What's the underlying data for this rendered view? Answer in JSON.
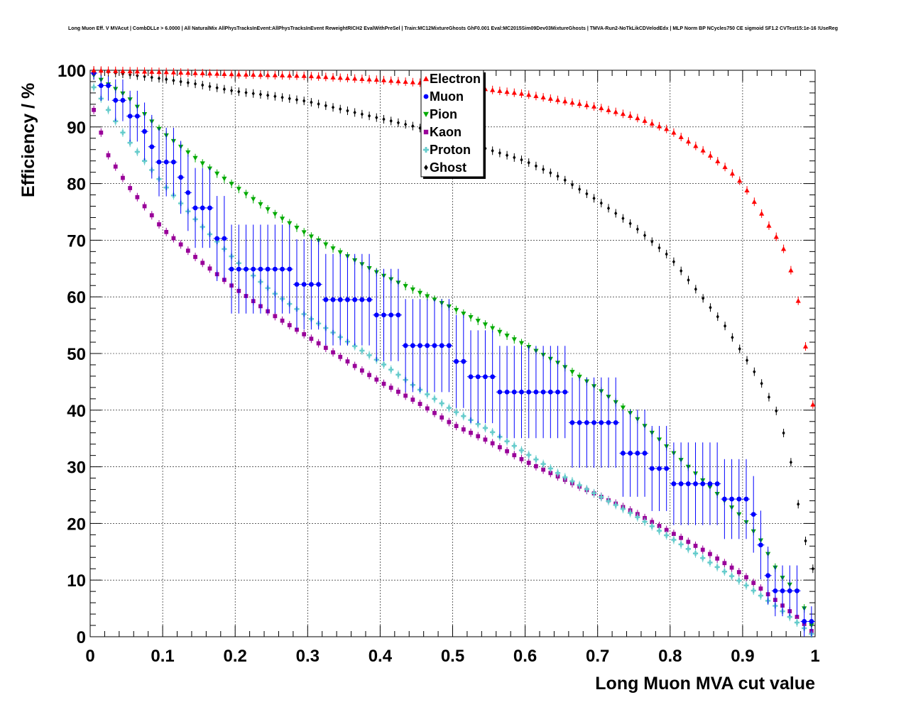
{
  "chart_data": {
    "type": "scatter",
    "title": "Long Muon Eff. V MVAcut | CombDLLe > 6.0000 | All NaturalMix AllPhysTracksInEvent:AllPhysTracksInEvent ReweightRICH2 EvalWithPreSel | Train:MC12MixtureGhosts GhF0.001 Eval:MC2015Sim09Dev03MixtureGhosts | TMVA-Run2-NoTkLikCDVelodEdx | MLP Norm BP NCycles750 CE sigmoid SF1.2 CVTest15:1e-16 !UseReg",
    "xlabel": "Long Muon MVA cut value",
    "ylabel": "Efficiency / %",
    "xlim": [
      0,
      1
    ],
    "ylim": [
      0,
      100
    ],
    "xticks": [
      "0",
      "0.1",
      "0.2",
      "0.3",
      "0.4",
      "0.5",
      "0.6",
      "0.7",
      "0.8",
      "0.9",
      "1"
    ],
    "yticks": [
      "0",
      "10",
      "20",
      "30",
      "40",
      "50",
      "60",
      "70",
      "80",
      "90",
      "100"
    ],
    "legend_position": "top-center",
    "series": [
      {
        "name": "Electron",
        "color": "#ff0000",
        "marker": "triangle-up",
        "points": [
          [
            0.0,
            100
          ],
          [
            0.1,
            99.7
          ],
          [
            0.2,
            99.3
          ],
          [
            0.3,
            99
          ],
          [
            0.4,
            98.3
          ],
          [
            0.5,
            97.4
          ],
          [
            0.6,
            95.8
          ],
          [
            0.7,
            93.5
          ],
          [
            0.75,
            91.8
          ],
          [
            0.8,
            89.4
          ],
          [
            0.85,
            85.5
          ],
          [
            0.88,
            82.5
          ],
          [
            0.9,
            80
          ],
          [
            0.92,
            76
          ],
          [
            0.94,
            71.8
          ],
          [
            0.955,
            69
          ],
          [
            0.965,
            65.5
          ],
          [
            0.975,
            60.5
          ],
          [
            0.985,
            53.5
          ],
          [
            0.995,
            41
          ]
        ]
      },
      {
        "name": "Muon",
        "color": "#0000ff",
        "marker": "circle",
        "points": [
          [
            0.005,
            99.5
          ],
          [
            0.015,
            97.3
          ],
          [
            0.025,
            97.3
          ],
          [
            0.035,
            94.7
          ],
          [
            0.045,
            94.7
          ],
          [
            0.055,
            91.9
          ],
          [
            0.065,
            91.9
          ],
          [
            0.075,
            89.2
          ],
          [
            0.085,
            86.5
          ],
          [
            0.095,
            83.8
          ],
          [
            0.105,
            83.8
          ],
          [
            0.115,
            83.8
          ],
          [
            0.125,
            81.1
          ],
          [
            0.135,
            78.4
          ],
          [
            0.145,
            75.7
          ],
          [
            0.155,
            75.7
          ],
          [
            0.165,
            75.7
          ],
          [
            0.175,
            70.3
          ],
          [
            0.185,
            70.3
          ],
          [
            0.195,
            64.9
          ],
          [
            0.205,
            64.9
          ],
          [
            0.215,
            64.9
          ],
          [
            0.225,
            64.9
          ],
          [
            0.235,
            64.9
          ],
          [
            0.245,
            64.9
          ],
          [
            0.255,
            64.9
          ],
          [
            0.265,
            64.9
          ],
          [
            0.275,
            64.9
          ],
          [
            0.285,
            62.2
          ],
          [
            0.295,
            62.2
          ],
          [
            0.305,
            62.2
          ],
          [
            0.315,
            62.2
          ],
          [
            0.325,
            59.5
          ],
          [
            0.335,
            59.5
          ],
          [
            0.345,
            59.5
          ],
          [
            0.355,
            59.5
          ],
          [
            0.365,
            59.5
          ],
          [
            0.375,
            59.5
          ],
          [
            0.385,
            59.5
          ],
          [
            0.395,
            56.8
          ],
          [
            0.405,
            56.8
          ],
          [
            0.415,
            56.8
          ],
          [
            0.425,
            56.8
          ],
          [
            0.435,
            51.4
          ],
          [
            0.445,
            51.4
          ],
          [
            0.455,
            51.4
          ],
          [
            0.465,
            51.4
          ],
          [
            0.475,
            51.4
          ],
          [
            0.485,
            51.4
          ],
          [
            0.495,
            51.4
          ],
          [
            0.505,
            48.6
          ],
          [
            0.515,
            48.6
          ],
          [
            0.525,
            45.9
          ],
          [
            0.535,
            45.9
          ],
          [
            0.545,
            45.9
          ],
          [
            0.555,
            45.9
          ],
          [
            0.565,
            43.2
          ],
          [
            0.575,
            43.2
          ],
          [
            0.585,
            43.2
          ],
          [
            0.595,
            43.2
          ],
          [
            0.605,
            43.2
          ],
          [
            0.615,
            43.2
          ],
          [
            0.625,
            43.2
          ],
          [
            0.635,
            43.2
          ],
          [
            0.645,
            43.2
          ],
          [
            0.655,
            43.2
          ],
          [
            0.665,
            37.8
          ],
          [
            0.675,
            37.8
          ],
          [
            0.685,
            37.8
          ],
          [
            0.695,
            37.8
          ],
          [
            0.705,
            37.8
          ],
          [
            0.715,
            37.8
          ],
          [
            0.725,
            37.8
          ],
          [
            0.735,
            32.4
          ],
          [
            0.745,
            32.4
          ],
          [
            0.755,
            32.4
          ],
          [
            0.765,
            32.4
          ],
          [
            0.775,
            29.7
          ],
          [
            0.785,
            29.7
          ],
          [
            0.795,
            29.7
          ],
          [
            0.805,
            27
          ],
          [
            0.815,
            27
          ],
          [
            0.825,
            27
          ],
          [
            0.835,
            27
          ],
          [
            0.845,
            27
          ],
          [
            0.855,
            27
          ],
          [
            0.865,
            27
          ],
          [
            0.875,
            24.3
          ],
          [
            0.885,
            24.3
          ],
          [
            0.895,
            24.3
          ],
          [
            0.905,
            24.3
          ],
          [
            0.915,
            21.6
          ],
          [
            0.925,
            16.2
          ],
          [
            0.935,
            10.8
          ],
          [
            0.945,
            8.1
          ],
          [
            0.955,
            8.1
          ],
          [
            0.965,
            8.1
          ],
          [
            0.975,
            8.1
          ],
          [
            0.985,
            2.7
          ],
          [
            0.995,
            2.7
          ]
        ]
      },
      {
        "name": "Pion",
        "color": "#00aa00",
        "marker": "triangle-down",
        "points": [
          [
            0.0,
            99.5
          ],
          [
            0.05,
            95.5
          ],
          [
            0.1,
            89
          ],
          [
            0.15,
            84
          ],
          [
            0.2,
            79.5
          ],
          [
            0.25,
            75
          ],
          [
            0.3,
            71
          ],
          [
            0.35,
            67.5
          ],
          [
            0.4,
            64
          ],
          [
            0.45,
            61
          ],
          [
            0.5,
            58
          ],
          [
            0.55,
            54.8
          ],
          [
            0.6,
            51.5
          ],
          [
            0.65,
            48
          ],
          [
            0.7,
            43.8
          ],
          [
            0.75,
            39
          ],
          [
            0.8,
            33
          ],
          [
            0.85,
            27
          ],
          [
            0.875,
            24
          ],
          [
            0.9,
            21
          ],
          [
            0.925,
            17
          ],
          [
            0.95,
            11
          ],
          [
            0.975,
            8
          ],
          [
            0.985,
            5
          ],
          [
            0.995,
            2
          ]
        ]
      },
      {
        "name": "Kaon",
        "color": "#990099",
        "marker": "square",
        "points": [
          [
            0.0,
            95
          ],
          [
            0.015,
            89
          ],
          [
            0.025,
            85
          ],
          [
            0.05,
            80
          ],
          [
            0.1,
            72
          ],
          [
            0.15,
            66.5
          ],
          [
            0.2,
            61.5
          ],
          [
            0.25,
            57
          ],
          [
            0.3,
            53
          ],
          [
            0.35,
            49
          ],
          [
            0.4,
            45
          ],
          [
            0.45,
            41.5
          ],
          [
            0.5,
            37.5
          ],
          [
            0.55,
            34.5
          ],
          [
            0.6,
            31
          ],
          [
            0.65,
            28
          ],
          [
            0.7,
            25
          ],
          [
            0.75,
            22
          ],
          [
            0.8,
            18.5
          ],
          [
            0.85,
            15
          ],
          [
            0.9,
            11
          ],
          [
            0.95,
            6
          ],
          [
            0.975,
            3.5
          ],
          [
            0.995,
            1
          ]
        ]
      },
      {
        "name": "Proton",
        "color": "#66cccc",
        "marker": "cross",
        "points": [
          [
            0.0,
            98
          ],
          [
            0.025,
            93
          ],
          [
            0.05,
            88
          ],
          [
            0.1,
            80
          ],
          [
            0.15,
            73
          ],
          [
            0.2,
            66.5
          ],
          [
            0.25,
            61
          ],
          [
            0.3,
            56.5
          ],
          [
            0.35,
            52.5
          ],
          [
            0.4,
            48.5
          ],
          [
            0.45,
            44
          ],
          [
            0.5,
            40
          ],
          [
            0.55,
            36.5
          ],
          [
            0.6,
            32.5
          ],
          [
            0.65,
            28.5
          ],
          [
            0.7,
            25
          ],
          [
            0.75,
            21.5
          ],
          [
            0.8,
            17.5
          ],
          [
            0.85,
            13.5
          ],
          [
            0.9,
            9.5
          ],
          [
            0.95,
            5
          ],
          [
            0.975,
            2.5
          ],
          [
            0.995,
            0.5
          ]
        ]
      },
      {
        "name": "Ghost",
        "color": "#000000",
        "marker": "diamond",
        "points": [
          [
            0.0,
            100
          ],
          [
            0.05,
            99.3
          ],
          [
            0.1,
            98.5
          ],
          [
            0.15,
            97.5
          ],
          [
            0.2,
            96.3
          ],
          [
            0.25,
            95.5
          ],
          [
            0.3,
            94.5
          ],
          [
            0.35,
            93
          ],
          [
            0.4,
            91.5
          ],
          [
            0.45,
            90
          ],
          [
            0.5,
            88
          ],
          [
            0.55,
            86
          ],
          [
            0.6,
            84
          ],
          [
            0.65,
            81
          ],
          [
            0.7,
            77
          ],
          [
            0.75,
            72.5
          ],
          [
            0.8,
            67
          ],
          [
            0.85,
            59
          ],
          [
            0.875,
            55
          ],
          [
            0.9,
            50
          ],
          [
            0.925,
            45
          ],
          [
            0.95,
            39
          ],
          [
            0.965,
            32
          ],
          [
            0.975,
            24.5
          ],
          [
            0.985,
            18
          ],
          [
            0.995,
            12
          ]
        ]
      }
    ]
  }
}
